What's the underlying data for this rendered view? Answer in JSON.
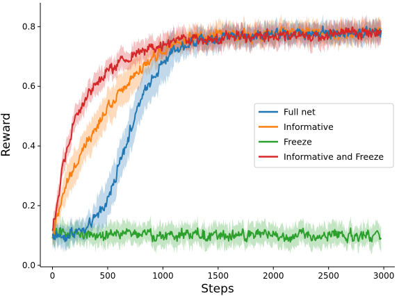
{
  "chart_data": {
    "type": "line",
    "title": "",
    "xlabel": "Steps",
    "ylabel": "Reward",
    "xlim": [
      -110,
      3100
    ],
    "ylim": [
      -0.005,
      0.88
    ],
    "xticks": [
      0,
      500,
      1000,
      1500,
      2000,
      2500,
      3000
    ],
    "yticks": [
      0.0,
      0.2,
      0.4,
      0.6,
      0.8
    ],
    "xtick_labels": [
      "0",
      "500",
      "1000",
      "1500",
      "2000",
      "2500",
      "3000"
    ],
    "ytick_labels": [
      "0.0",
      "0.2",
      "0.4",
      "0.6",
      "0.8"
    ],
    "grid": false,
    "legend_position": "center-right",
    "x_end": 2980,
    "series": [
      {
        "name": "Full net",
        "color": "#1f77b4",
        "x": [
          0,
          100,
          200,
          300,
          400,
          500,
          600,
          700,
          800,
          900,
          1000,
          1100,
          1200,
          1300,
          1400,
          1500,
          1600,
          1700,
          1800,
          1900,
          2000,
          2100,
          2200,
          2300,
          2400,
          2500,
          2600,
          2700,
          2800,
          2900,
          2980
        ],
        "y": [
          0.1,
          0.1,
          0.11,
          0.12,
          0.16,
          0.22,
          0.33,
          0.45,
          0.55,
          0.63,
          0.68,
          0.72,
          0.74,
          0.75,
          0.76,
          0.76,
          0.77,
          0.77,
          0.77,
          0.77,
          0.78,
          0.78,
          0.78,
          0.78,
          0.78,
          0.78,
          0.78,
          0.78,
          0.78,
          0.78,
          0.78
        ]
      },
      {
        "name": "Informative",
        "color": "#ff7f0e",
        "x": [
          0,
          100,
          200,
          300,
          400,
          500,
          600,
          700,
          800,
          900,
          1000,
          1100,
          1200,
          1300,
          1400,
          1500,
          1600,
          1700,
          1800,
          1900,
          2000,
          2100,
          2200,
          2300,
          2400,
          2500,
          2600,
          2700,
          2800,
          2900,
          2980
        ],
        "y": [
          0.11,
          0.25,
          0.33,
          0.41,
          0.47,
          0.53,
          0.58,
          0.62,
          0.66,
          0.69,
          0.72,
          0.74,
          0.75,
          0.76,
          0.76,
          0.77,
          0.77,
          0.77,
          0.77,
          0.77,
          0.78,
          0.78,
          0.78,
          0.78,
          0.78,
          0.78,
          0.78,
          0.78,
          0.78,
          0.78,
          0.79
        ]
      },
      {
        "name": "Freeze",
        "color": "#2ca02c",
        "x": [
          0,
          100,
          200,
          300,
          400,
          500,
          600,
          700,
          800,
          900,
          1000,
          1100,
          1200,
          1300,
          1400,
          1500,
          1600,
          1700,
          1800,
          1900,
          2000,
          2100,
          2200,
          2300,
          2400,
          2500,
          2600,
          2700,
          2800,
          2900,
          2980
        ],
        "y": [
          0.1,
          0.11,
          0.11,
          0.11,
          0.1,
          0.1,
          0.1,
          0.11,
          0.11,
          0.1,
          0.1,
          0.1,
          0.1,
          0.11,
          0.1,
          0.1,
          0.1,
          0.1,
          0.1,
          0.1,
          0.1,
          0.1,
          0.1,
          0.1,
          0.1,
          0.1,
          0.1,
          0.1,
          0.1,
          0.1,
          0.1
        ]
      },
      {
        "name": "Informative and Freeze",
        "color": "#d62728",
        "x": [
          0,
          100,
          200,
          300,
          400,
          500,
          600,
          700,
          800,
          900,
          1000,
          1100,
          1200,
          1300,
          1400,
          1500,
          1600,
          1700,
          1800,
          1900,
          2000,
          2100,
          2200,
          2300,
          2400,
          2500,
          2600,
          2700,
          2800,
          2900,
          2980
        ],
        "y": [
          0.11,
          0.35,
          0.48,
          0.56,
          0.61,
          0.65,
          0.68,
          0.7,
          0.72,
          0.73,
          0.74,
          0.75,
          0.75,
          0.76,
          0.76,
          0.76,
          0.77,
          0.77,
          0.77,
          0.77,
          0.77,
          0.77,
          0.77,
          0.77,
          0.77,
          0.77,
          0.78,
          0.78,
          0.78,
          0.78,
          0.78
        ]
      }
    ]
  }
}
